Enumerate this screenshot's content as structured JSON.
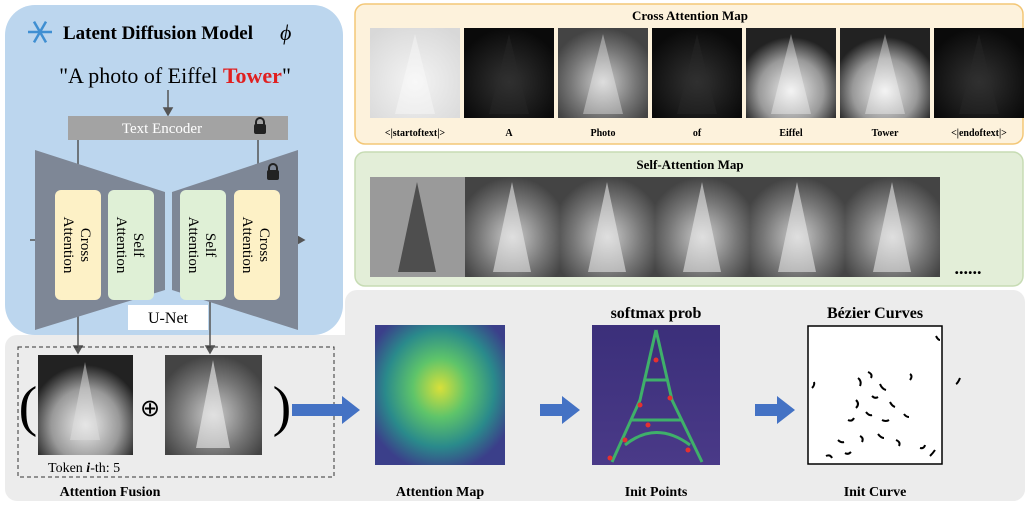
{
  "ldm": {
    "title": "Latent Diffusion Model",
    "symbol": "ϕ",
    "prompt_prefix": "\"A photo of Eiffel ",
    "prompt_highlight": "Tower",
    "prompt_suffix": "\"",
    "text_encoder": "Text Encoder",
    "blocks": [
      "Cross Attention",
      "Self Attention",
      "Self Attention",
      "Cross Attention"
    ],
    "unet": "U-Net"
  },
  "cross_attention": {
    "title": "Cross Attention Map",
    "tokens": [
      "<|startoftext|>",
      "A",
      "Photo",
      "of",
      "Eiffel",
      "Tower",
      "<|endoftext|>"
    ]
  },
  "self_attention": {
    "title": "Self-Attention Map",
    "ellipsis": "......"
  },
  "fusion": {
    "open": "(",
    "op": "⊕",
    "close": ")",
    "token_prefix": "Token ",
    "token_i": "i",
    "token_suffix": "-th: 5",
    "caption": "Attention Fusion"
  },
  "stages": [
    {
      "caption": "Attention Map"
    },
    {
      "title": "softmax prob",
      "caption": "Init Points"
    },
    {
      "title": "Bézier Curves",
      "caption": "Init Curve"
    }
  ]
}
